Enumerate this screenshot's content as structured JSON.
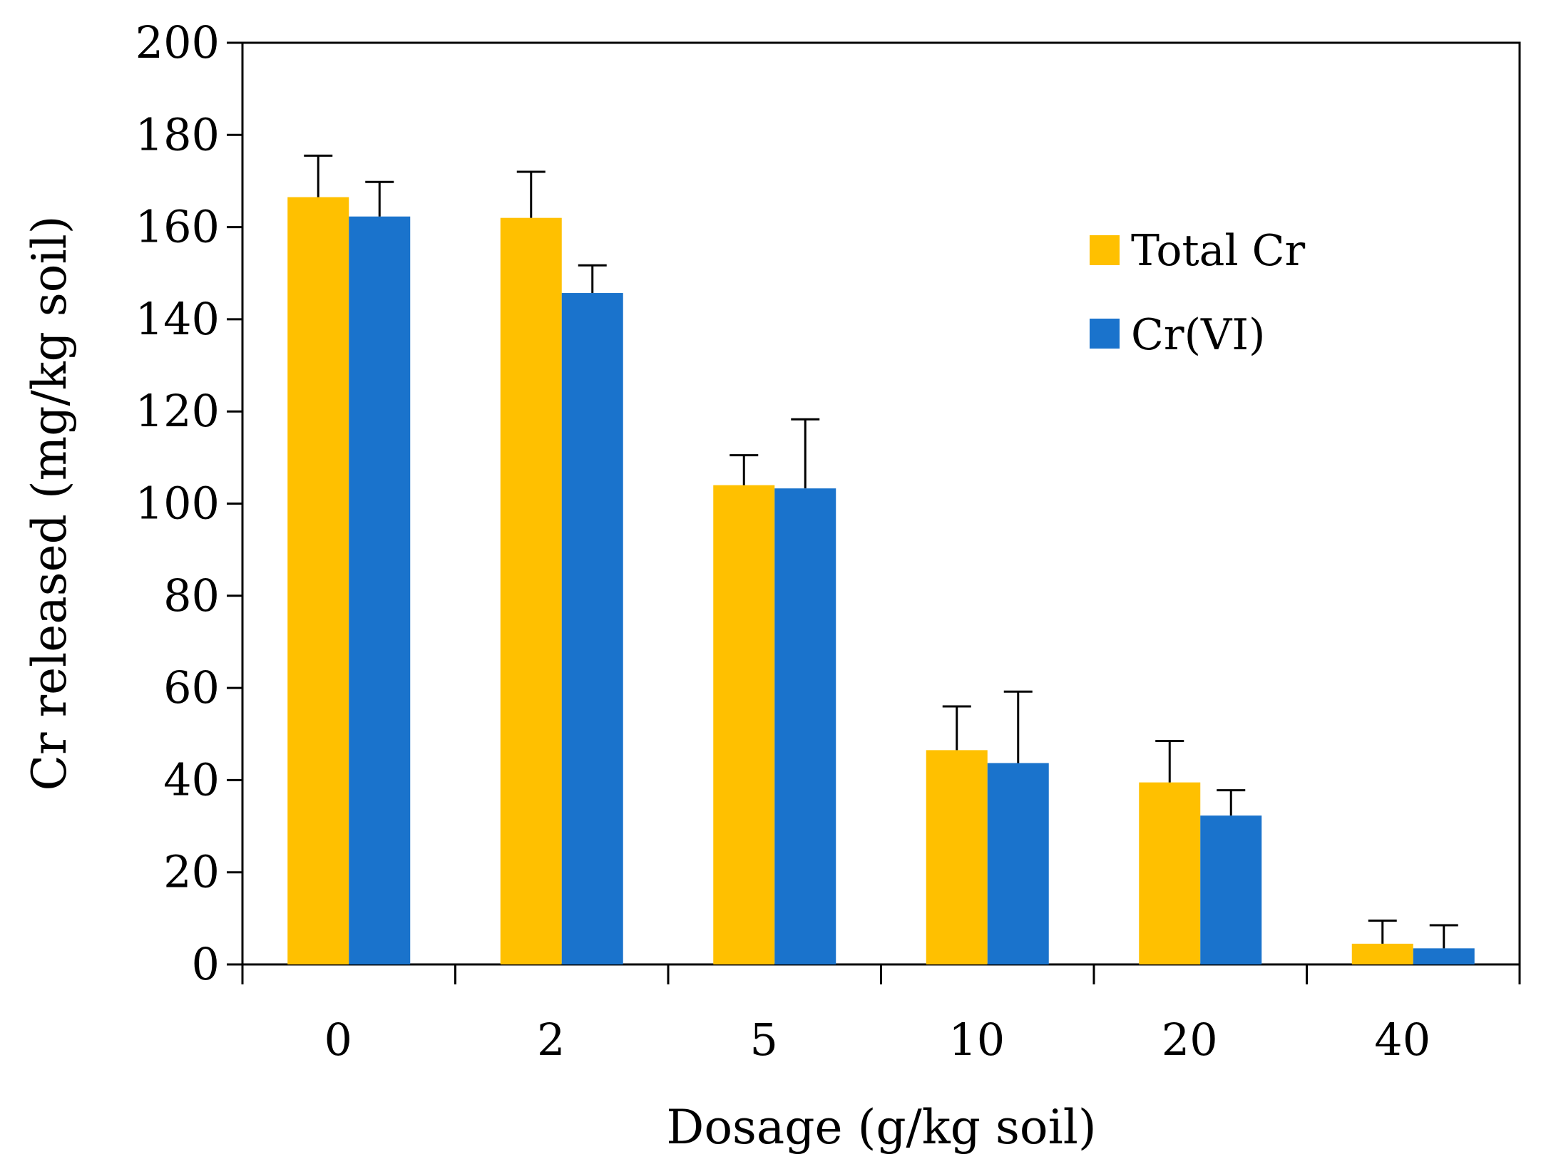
{
  "chart_data": {
    "type": "bar",
    "title": "",
    "xlabel": "Dosage (g/kg soil)",
    "ylabel": "Cr released (mg/kg soil)",
    "categories": [
      "0",
      "2",
      "5",
      "10",
      "20",
      "40"
    ],
    "ylim": [
      0,
      200
    ],
    "yticks": [
      0,
      20,
      40,
      60,
      80,
      100,
      120,
      140,
      160,
      180,
      200
    ],
    "ytick_labels": [
      "0",
      "20",
      "40",
      "60",
      "80",
      "100",
      "120",
      "140",
      "160",
      "180",
      "200"
    ],
    "grid": false,
    "legend_position": "upper-right inside",
    "series": [
      {
        "name": "Total Cr",
        "color": "#FFC000",
        "values": [
          166.5,
          162.0,
          104.0,
          46.5,
          39.5,
          4.5
        ],
        "errors": [
          9.0,
          10.0,
          6.5,
          9.5,
          9.0,
          5.0
        ]
      },
      {
        "name": "Cr(VI)",
        "color": "#1A73CC",
        "values": [
          162.3,
          145.7,
          103.3,
          43.7,
          32.3,
          3.5
        ],
        "errors": [
          7.5,
          6.0,
          15.0,
          15.5,
          5.5,
          5.0
        ]
      }
    ]
  }
}
